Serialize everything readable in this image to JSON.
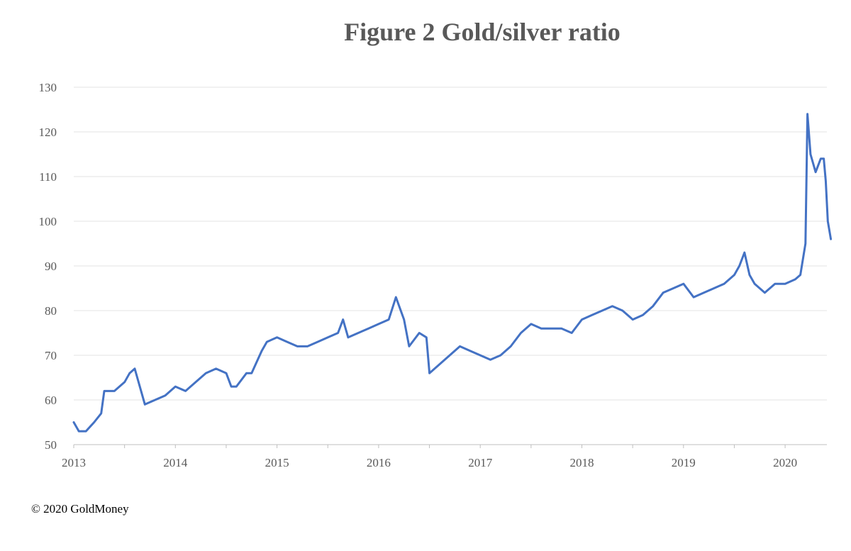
{
  "chart_data": {
    "type": "line",
    "title": "Figure 2 Gold/silver ratio",
    "xlabel": "",
    "ylabel": "",
    "ylim": [
      50,
      130
    ],
    "yticks": [
      50,
      60,
      70,
      80,
      90,
      100,
      110,
      120,
      130
    ],
    "xticks": [
      "2013",
      "2014",
      "2015",
      "2016",
      "2017",
      "2018",
      "2019",
      "2020"
    ],
    "xlim": [
      2013.0,
      2020.45
    ],
    "grid": "horizontal",
    "legend": "none",
    "series": [
      {
        "color": "#4472C4",
        "x": [
          2013.0,
          2013.05,
          2013.12,
          2013.2,
          2013.27,
          2013.3,
          2013.4,
          2013.5,
          2013.55,
          2013.6,
          2013.7,
          2013.8,
          2013.9,
          2014.0,
          2014.1,
          2014.2,
          2014.3,
          2014.4,
          2014.5,
          2014.55,
          2014.6,
          2014.7,
          2014.75,
          2014.85,
          2014.9,
          2015.0,
          2015.1,
          2015.2,
          2015.3,
          2015.4,
          2015.5,
          2015.6,
          2015.65,
          2015.7,
          2015.8,
          2015.9,
          2016.0,
          2016.1,
          2016.17,
          2016.25,
          2016.3,
          2016.4,
          2016.47,
          2016.5,
          2016.6,
          2016.7,
          2016.8,
          2016.9,
          2017.0,
          2017.1,
          2017.2,
          2017.3,
          2017.4,
          2017.5,
          2017.6,
          2017.7,
          2017.8,
          2017.9,
          2018.0,
          2018.1,
          2018.2,
          2018.3,
          2018.4,
          2018.45,
          2018.5,
          2018.6,
          2018.7,
          2018.8,
          2018.9,
          2019.0,
          2019.1,
          2019.2,
          2019.3,
          2019.4,
          2019.5,
          2019.55,
          2019.6,
          2019.65,
          2019.7,
          2019.8,
          2019.9,
          2020.0,
          2020.1,
          2020.15,
          2020.2,
          2020.22,
          2020.25,
          2020.3,
          2020.35,
          2020.38,
          2020.4,
          2020.42,
          2020.45
        ],
        "values": [
          55,
          53,
          53,
          55,
          57,
          62,
          62,
          64,
          66,
          67,
          59,
          60,
          61,
          63,
          62,
          64,
          66,
          67,
          66,
          63,
          63,
          66,
          66,
          71,
          73,
          74,
          73,
          72,
          72,
          73,
          74,
          75,
          78,
          74,
          75,
          76,
          77,
          78,
          83,
          78,
          72,
          75,
          74,
          66,
          68,
          70,
          72,
          71,
          70,
          69,
          70,
          72,
          75,
          77,
          76,
          76,
          76,
          75,
          78,
          79,
          80,
          81,
          80,
          79,
          78,
          79,
          81,
          84,
          85,
          86,
          83,
          84,
          85,
          86,
          88,
          90,
          93,
          88,
          86,
          84,
          86,
          86,
          87,
          88,
          95,
          124,
          115,
          111,
          114,
          114,
          109,
          100,
          96
        ]
      }
    ]
  },
  "footer": {
    "copyright": "© 2020 GoldMoney"
  }
}
